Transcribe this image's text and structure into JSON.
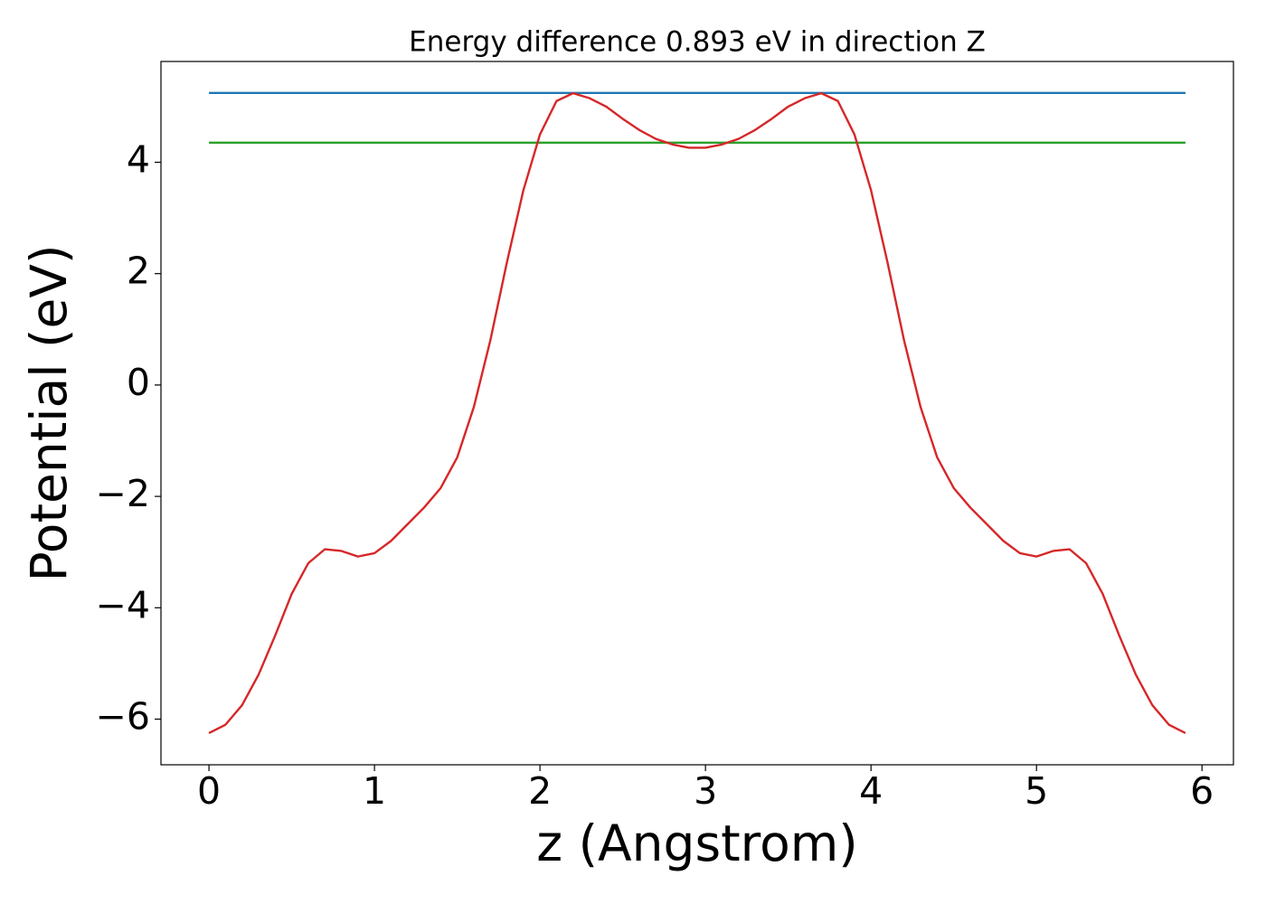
{
  "chart_data": {
    "type": "line",
    "title": "Energy difference 0.893 eV in direction Z",
    "xlabel": "z (Angstrom)",
    "ylabel": "Potential (eV)",
    "xlim": [
      -0.29,
      6.19
    ],
    "ylim": [
      -6.82,
      5.81
    ],
    "xticks": [
      0,
      1,
      2,
      3,
      4,
      5,
      6
    ],
    "yticks": [
      {
        "value": -6,
        "label": "−6"
      },
      {
        "value": -4,
        "label": "−4"
      },
      {
        "value": -2,
        "label": "−2"
      },
      0,
      2,
      4
    ],
    "grid": false,
    "series": [
      {
        "color": "#1f77b4",
        "x": [
          0,
          5.9
        ],
        "values": [
          5.245,
          5.245
        ]
      },
      {
        "color": "#2ca02c",
        "x": [
          0,
          5.9
        ],
        "values": [
          4.352,
          4.352
        ]
      },
      {
        "color": "#d62728",
        "x": [
          0,
          0.1,
          0.2,
          0.3,
          0.4,
          0.5,
          0.6,
          0.7,
          0.8,
          0.9,
          1.0,
          1.1,
          1.2,
          1.3,
          1.4,
          1.5,
          1.6,
          1.7,
          1.8,
          1.9,
          2.0,
          2.1,
          2.2,
          2.3,
          2.4,
          2.5,
          2.6,
          2.7,
          2.8,
          2.9,
          3.0,
          3.1,
          3.2,
          3.3,
          3.4,
          3.5,
          3.6,
          3.7,
          3.8,
          3.9,
          4.0,
          4.1,
          4.2,
          4.3,
          4.4,
          4.5,
          4.6,
          4.7,
          4.8,
          4.9,
          5.0,
          5.1,
          5.2,
          5.3,
          5.4,
          5.5,
          5.6,
          5.7,
          5.8,
          5.9
        ],
        "values": [
          -6.25,
          -6.1,
          -5.75,
          -5.2,
          -4.5,
          -3.75,
          -3.2,
          -2.95,
          -2.98,
          -3.08,
          -3.02,
          -2.8,
          -2.5,
          -2.2,
          -1.85,
          -1.3,
          -0.4,
          0.8,
          2.2,
          3.5,
          4.5,
          5.1,
          5.24,
          5.15,
          5.0,
          4.78,
          4.58,
          4.42,
          4.32,
          4.26,
          4.26,
          4.32,
          4.42,
          4.58,
          4.78,
          5.0,
          5.15,
          5.24,
          5.1,
          4.5,
          3.5,
          2.2,
          0.8,
          -0.4,
          -1.3,
          -1.85,
          -2.2,
          -2.5,
          -2.8,
          -3.02,
          -3.08,
          -2.98,
          -2.95,
          -3.2,
          -3.75,
          -4.5,
          -5.2,
          -5.75,
          -6.1,
          -6.25
        ]
      }
    ]
  }
}
